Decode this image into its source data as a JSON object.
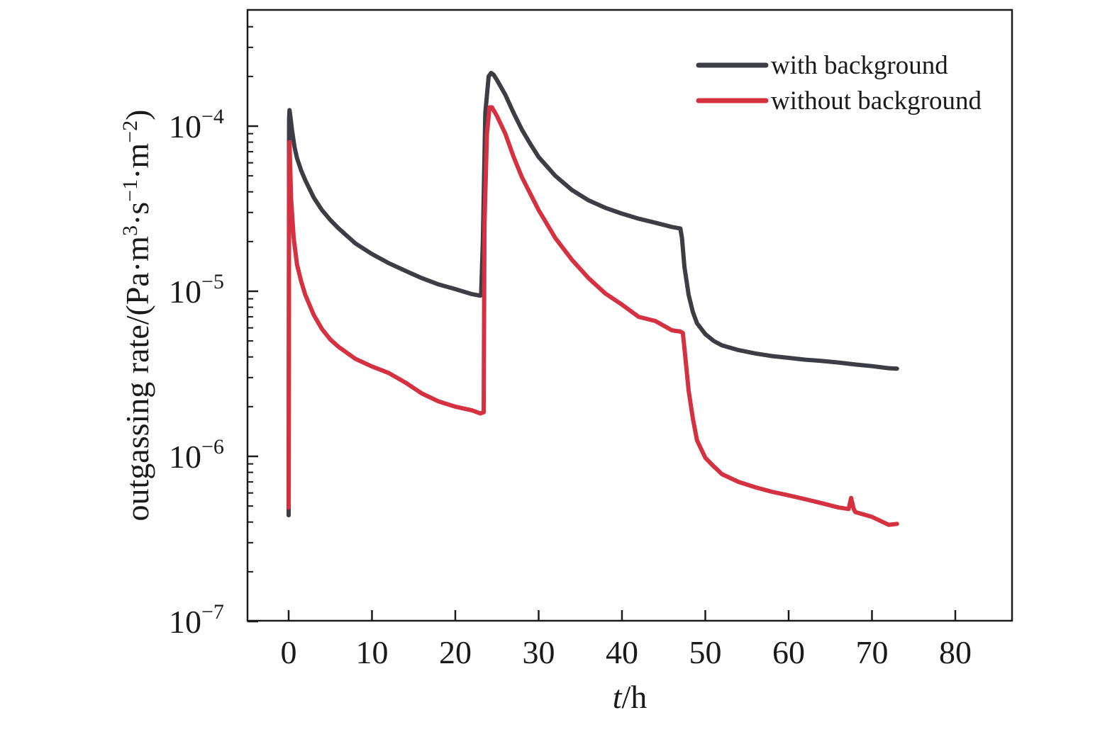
{
  "chart_data": {
    "type": "line",
    "title": "",
    "xlabel": "t/h",
    "ylabel": "outgassing rate/(Pa·m3·s−1·m−2)",
    "xlim": [
      -5,
      87
    ],
    "ylim": [
      1e-07,
      0.0006
    ],
    "y_scale": "log",
    "x_ticks": [
      0,
      10,
      20,
      30,
      40,
      50,
      60,
      70,
      80
    ],
    "x_tick_labels": [
      "0",
      "10",
      "20",
      "30",
      "40",
      "50",
      "60",
      "70",
      "80"
    ],
    "y_ticks": [
      1e-07,
      1e-06,
      1e-05,
      0.0001
    ],
    "y_tick_labels": [
      {
        "base": "10",
        "exp": "−7"
      },
      {
        "base": "10",
        "exp": "−6"
      },
      {
        "base": "10",
        "exp": "−5"
      },
      {
        "base": "10",
        "exp": "−4"
      }
    ],
    "ylabel_parts": {
      "pre": "outgassing rate/(Pa·m",
      "sup1": "3",
      "mid1": "·s",
      "sup2": "−1",
      "mid2": "·m",
      "sup3": "−2",
      "post": ")"
    },
    "xlabel_parts": {
      "italic": "t",
      "rest": "/h"
    },
    "grid": false,
    "legend_position": "top-right",
    "series": [
      {
        "name": "with background",
        "color": "#3d3d45",
        "x": [
          0,
          0.05,
          0.1,
          0.2,
          0.4,
          0.7,
          1,
          1.5,
          2,
          3,
          4,
          5,
          6,
          8,
          10,
          12,
          14,
          16,
          18,
          20,
          22,
          23,
          23.1,
          23.3,
          23.6,
          24,
          24.3,
          24.6,
          25,
          26,
          27,
          28,
          29,
          30,
          32,
          34,
          36,
          38,
          40,
          42,
          44,
          46,
          47,
          47.2,
          47.5,
          48,
          48.5,
          49,
          50,
          51,
          52,
          54,
          56,
          58,
          60,
          62,
          64,
          66,
          68,
          70,
          72,
          73
        ],
        "y": [
          4.4e-07,
          0.00011,
          0.000125,
          0.000115,
          9.5e-05,
          7.5e-05,
          6.4e-05,
          5.4e-05,
          4.7e-05,
          3.7e-05,
          3.1e-05,
          2.7e-05,
          2.4e-05,
          1.95e-05,
          1.68e-05,
          1.48e-05,
          1.33e-05,
          1.2e-05,
          1.1e-05,
          1.03e-05,
          9.6e-06,
          9.4e-06,
          9.5e-06,
          2e-05,
          0.00012,
          0.0002,
          0.00021,
          0.000205,
          0.00019,
          0.000155,
          0.00012,
          9.5e-05,
          7.8e-05,
          6.5e-05,
          5e-05,
          4.1e-05,
          3.55e-05,
          3.2e-05,
          2.95e-05,
          2.75e-05,
          2.6e-05,
          2.45e-05,
          2.4e-05,
          2.1e-05,
          1.4e-05,
          9.5e-06,
          7.5e-06,
          6.4e-06,
          5.5e-06,
          5e-06,
          4.7e-06,
          4.4e-06,
          4.2e-06,
          4.05e-06,
          3.95e-06,
          3.85e-06,
          3.78e-06,
          3.7e-06,
          3.6e-06,
          3.52e-06,
          3.42e-06,
          3.4e-06
        ]
      },
      {
        "name": "without background",
        "color": "#d53141",
        "x": [
          0,
          0.05,
          0.1,
          0.15,
          0.3,
          0.6,
          1,
          1.5,
          2,
          3,
          4,
          5,
          6,
          8,
          10,
          12,
          14,
          16,
          18,
          20,
          22,
          23,
          23.4,
          23.5,
          23.8,
          24.1,
          24.4,
          25,
          26,
          27,
          28,
          30,
          32,
          34,
          36,
          38,
          40,
          42,
          44,
          46,
          47,
          47.3,
          47.6,
          48,
          48.5,
          49,
          50,
          51,
          52,
          54,
          56,
          58,
          60,
          62,
          64,
          66,
          67.2,
          67.5,
          67.8,
          68,
          70,
          72,
          73
        ],
        "y": [
          4.9e-07,
          4e-05,
          8e-05,
          6.5e-05,
          3.6e-05,
          2.1e-05,
          1.45e-05,
          1.15e-05,
          9.5e-06,
          7.2e-06,
          5.9e-06,
          5.1e-06,
          4.6e-06,
          3.9e-06,
          3.5e-06,
          3.2e-06,
          2.8e-06,
          2.4e-06,
          2.15e-06,
          2e-06,
          1.9e-06,
          1.82e-06,
          1.85e-06,
          2.5e-05,
          9e-05,
          0.00013,
          0.00013,
          0.000115,
          9e-05,
          6.5e-05,
          4.9e-05,
          3.1e-05,
          2.1e-05,
          1.55e-05,
          1.2e-05,
          9.7e-06,
          8.3e-06,
          7e-06,
          6.6e-06,
          5.8e-06,
          5.7e-06,
          5.6e-06,
          4e-06,
          2.5e-06,
          1.7e-06,
          1.25e-06,
          9.8e-07,
          8.7e-07,
          7.8e-07,
          7e-07,
          6.5e-07,
          6.1e-07,
          5.8e-07,
          5.5e-07,
          5.2e-07,
          4.9e-07,
          4.8e-07,
          5.6e-07,
          4.8e-07,
          4.6e-07,
          4.3e-07,
          3.85e-07,
          3.9e-07
        ]
      }
    ]
  }
}
